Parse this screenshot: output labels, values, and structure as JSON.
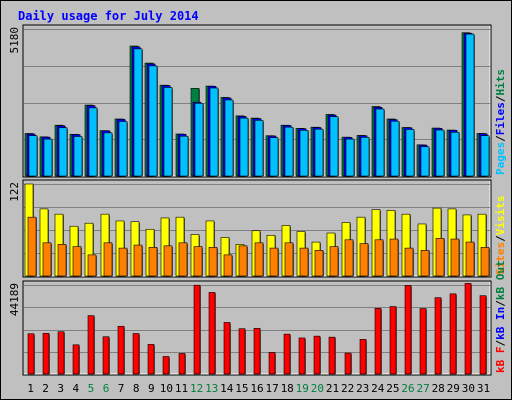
{
  "chart_data": {
    "type": "bar",
    "title": "Daily usage for July 2014",
    "categories": [
      "1",
      "2",
      "3",
      "4",
      "5",
      "6",
      "7",
      "8",
      "9",
      "10",
      "11",
      "12",
      "13",
      "14",
      "15",
      "16",
      "17",
      "18",
      "19",
      "20",
      "21",
      "22",
      "23",
      "24",
      "25",
      "26",
      "27",
      "28",
      "29",
      "30",
      "31"
    ],
    "weekend_days": [
      "5",
      "6",
      "12",
      "13",
      "19",
      "20",
      "26",
      "27"
    ],
    "panels": [
      {
        "name": "hits-files-pages",
        "max_label": "5180",
        "ylim": [
          0,
          5180
        ],
        "series": [
          {
            "name": "Hits",
            "color": "#008040",
            "values": [
              1500,
              1380,
              1790,
              1470,
              2500,
              1600,
              2010,
              4580,
              3980,
              3200,
              1480,
              3090,
              3170,
              2770,
              2120,
              2040,
              1420,
              1790,
              1680,
              1720,
              2170,
              1370,
              1430,
              2450,
              2010,
              1710,
              1100,
              1690,
              1620,
              5050,
              1500
            ]
          },
          {
            "name": "Files",
            "color": "#0000ff",
            "values": [
              1480,
              1370,
              1770,
              1460,
              2480,
              1590,
              2000,
              4550,
              3950,
              3190,
              1470,
              2600,
              3160,
              2750,
              2100,
              2020,
              1410,
              1780,
              1670,
              1710,
              2150,
              1360,
              1420,
              2420,
              1990,
              1700,
              1090,
              1680,
              1610,
              5030,
              1490
            ]
          },
          {
            "name": "Pages",
            "color": "#00c0ff",
            "values": [
              1420,
              1300,
              1700,
              1390,
              2400,
              1520,
              1920,
              4480,
              3880,
              3120,
              1400,
              2560,
              3100,
              2680,
              2040,
              1960,
              1350,
              1720,
              1610,
              1650,
              2090,
              1300,
              1360,
              2360,
              1930,
              1640,
              1030,
              1620,
              1540,
              5000,
              1420
            ]
          }
        ],
        "legend": [
          {
            "text": "Pages",
            "color": "#00c0ff"
          },
          {
            "text": "/",
            "color": "#000000"
          },
          {
            "text": "Files",
            "color": "#0000ff"
          },
          {
            "text": "/",
            "color": "#000000"
          },
          {
            "text": "Hits",
            "color": "#008040"
          }
        ]
      },
      {
        "name": "visits-sites",
        "max_label": "122",
        "ylim": [
          0,
          122
        ],
        "series": [
          {
            "name": "Visits",
            "color": "#ffff00",
            "values": [
              122,
              89,
              82,
              66,
              70,
              82,
              73,
              72,
              62,
              77,
              78,
              55,
              73,
              51,
              42,
              60,
              54,
              67,
              59,
              45,
              57,
              71,
              78,
              88,
              87,
              82,
              69,
              90,
              89,
              81,
              82
            ]
          },
          {
            "name": "Sites",
            "color": "#ff8000",
            "values": [
              78,
              44,
              42,
              39,
              28,
              44,
              37,
              41,
              38,
              40,
              44,
              39,
              38,
              28,
              40,
              44,
              37,
              44,
              37,
              34,
              39,
              48,
              43,
              48,
              49,
              37,
              34,
              50,
              49,
              45,
              38
            ]
          }
        ],
        "legend": [
          {
            "text": "Sites",
            "color": "#ff8000"
          },
          {
            "text": "/",
            "color": "#000000"
          },
          {
            "text": "Visits",
            "color": "#ffff00"
          }
        ]
      },
      {
        "name": "kbytes",
        "max_label": "44189",
        "ylim": [
          0,
          44189
        ],
        "series": [
          {
            "name": "kB F",
            "color": "#ff0000",
            "values": [
              20000,
              20200,
              21000,
              14500,
              29000,
              18500,
              23700,
              20100,
              14700,
              8700,
              10200,
              44100,
              40500,
              25600,
              22500,
              22700,
              10700,
              19800,
              17900,
              18800,
              18300,
              10400,
              17200,
              32600,
              33500,
              44000,
              32500,
              37900,
              39800,
              45000,
              38900
            ]
          }
        ],
        "legend": [
          {
            "text": "kB F",
            "color": "#ff0000"
          },
          {
            "text": "/",
            "color": "#000000"
          },
          {
            "text": "kB In",
            "color": "#0000ff"
          },
          {
            "text": "/",
            "color": "#000000"
          },
          {
            "text": "kB Out",
            "color": "#008040"
          }
        ]
      }
    ]
  }
}
